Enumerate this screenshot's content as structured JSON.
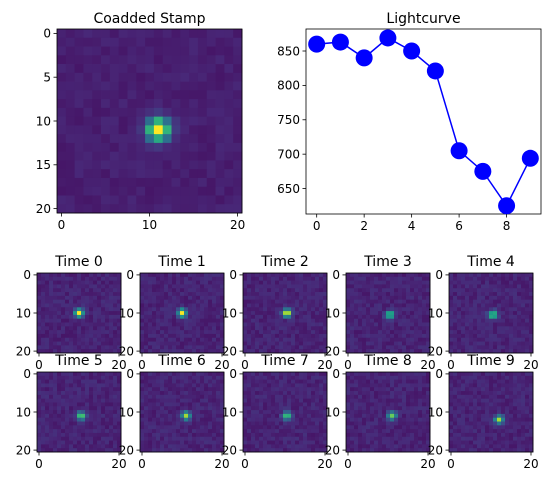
{
  "chart_data": [
    {
      "type": "heatmap",
      "title": "Coadded Stamp",
      "xlabel": "",
      "ylabel": "",
      "xlim": [
        -0.5,
        20.5
      ],
      "ylim": [
        20.5,
        -0.5
      ],
      "xticks": [
        0,
        10,
        20
      ],
      "yticks": [
        0,
        5,
        10,
        15,
        20
      ],
      "source": {
        "x": 11,
        "y": 11,
        "peak": 1.0
      },
      "colormap": "viridis"
    },
    {
      "type": "line",
      "title": "Lightcurve",
      "xlabel": "",
      "ylabel": "",
      "x": [
        0,
        1,
        2,
        3,
        4,
        5,
        6,
        7,
        8,
        9
      ],
      "series": [
        {
          "values": [
            860,
            863,
            840,
            869,
            850,
            821,
            705,
            675,
            625,
            694
          ]
        }
      ],
      "xlim": [
        -0.45,
        9.45
      ],
      "ylim": [
        613,
        882
      ],
      "xticks": [
        0,
        2,
        4,
        6,
        8
      ],
      "yticks": [
        650,
        700,
        750,
        800,
        850
      ],
      "color": "#0000ff"
    },
    {
      "type": "heatmap",
      "panels": [
        {
          "title": "Time 0",
          "source": {
            "x": 10.0,
            "y": 10.0,
            "peak": 0.95
          }
        },
        {
          "title": "Time 1",
          "source": {
            "x": 10.0,
            "y": 10.0,
            "peak": 0.9
          }
        },
        {
          "title": "Time 2",
          "source": {
            "x": 10.5,
            "y": 10.0,
            "peak": 0.95
          }
        },
        {
          "title": "Time 3",
          "source": {
            "x": 10.5,
            "y": 10.5,
            "peak": 0.7
          }
        },
        {
          "title": "Time 4",
          "source": {
            "x": 10.5,
            "y": 10.5,
            "peak": 0.7
          }
        },
        {
          "title": "Time 5",
          "source": {
            "x": 10.5,
            "y": 11.0,
            "peak": 0.7
          }
        },
        {
          "title": "Time 6",
          "source": {
            "x": 11.0,
            "y": 11.0,
            "peak": 0.75
          }
        },
        {
          "title": "Time 7",
          "source": {
            "x": 10.5,
            "y": 11.0,
            "peak": 0.7
          }
        },
        {
          "title": "Time 8",
          "source": {
            "x": 11.0,
            "y": 11.0,
            "peak": 0.7
          }
        },
        {
          "title": "Time 9",
          "source": {
            "x": 12.0,
            "y": 12.0,
            "peak": 0.8
          }
        }
      ],
      "xticks": [
        0,
        20
      ],
      "yticks": [
        0,
        10,
        20
      ],
      "colormap": "viridis"
    }
  ]
}
